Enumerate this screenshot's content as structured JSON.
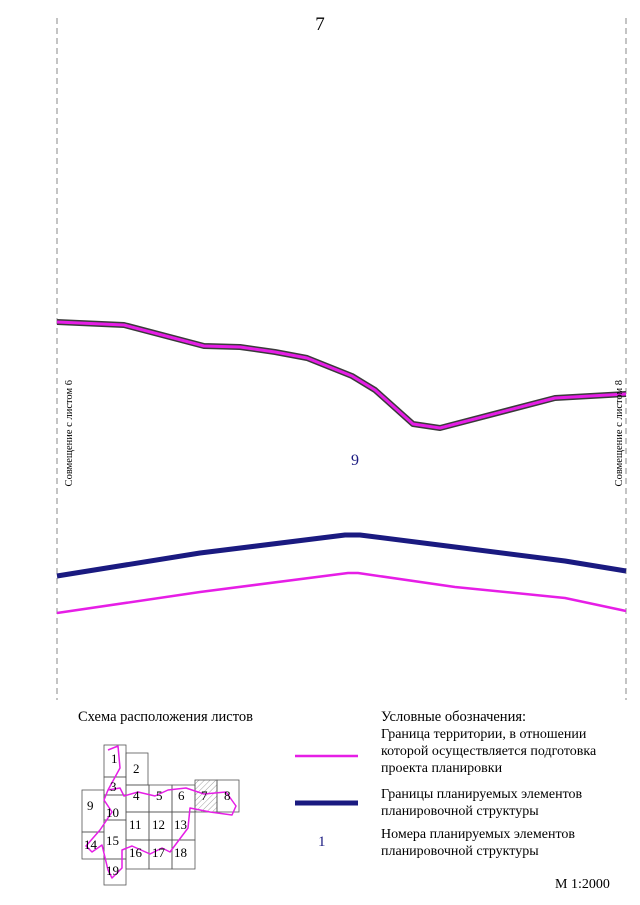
{
  "page_number": "7",
  "match_line_left": "Совмещение с листом 6",
  "match_line_right": "Совмещение с листом 8",
  "element_number": "9",
  "scheme": {
    "title": "Схема расположения листов",
    "sheets": [
      "1",
      "2",
      "3",
      "4",
      "5",
      "6",
      "7",
      "8",
      "9",
      "10",
      "11",
      "12",
      "13",
      "14",
      "15",
      "16",
      "17",
      "18",
      "19"
    ],
    "current_sheet": "7"
  },
  "legend": {
    "title": "Условные обозначения:",
    "items": [
      {
        "text": "Граница территории, в отношении которой осуществляется подготовка проекта планировки",
        "color": "#e61ee6"
      },
      {
        "text": "Границы планируемых элементов планировочной структуры",
        "color": "#1a1a80"
      },
      {
        "text": "Номера планируемых элементов планировочной структуры",
        "symbol": "1",
        "color": "#1a1a80"
      }
    ]
  },
  "scale": "М 1:2000",
  "colors": {
    "territory_boundary": "#e61ee6",
    "element_boundary": "#1a1a80",
    "match_line": "#888888"
  }
}
